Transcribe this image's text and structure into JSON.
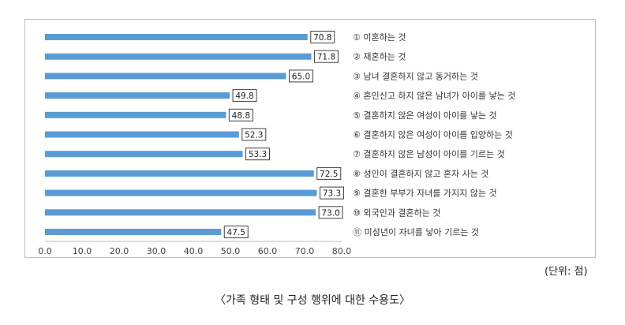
{
  "chart_data": {
    "type": "bar",
    "orientation": "horizontal",
    "title": "〈가족 형태 및 구성 행위에 대한 수용도〉",
    "unit": "(단위: 점)",
    "xlabel": "",
    "ylabel": "",
    "xlim": [
      0,
      80
    ],
    "ticks": [
      "0.0",
      "10.0",
      "20.0",
      "30.0",
      "40.0",
      "50.0",
      "60.0",
      "70.0",
      "80.0"
    ],
    "bar_color": "#5b9bd5",
    "grid": false,
    "categories": [
      "① 이혼하는 것",
      "② 재혼하는 것",
      "③ 남녀 결혼하지 않고 동거하는 것",
      "④ 혼인신고 하지 않은 남녀가 아이를 낳는 것",
      "⑤ 결혼하지 않은 여성이 아이를 낳는 것",
      "⑥ 결혼하지 않은 여성이 아이를 입양하는 것",
      "⑦ 결혼하지 않은 남성이 아이를 기르는 것",
      "⑧ 성인이 결혼하지 않고 혼자 사는 것",
      "⑨ 결혼한 부부가 자녀를 가지지 않는 것",
      "⑩ 외국인과 결혼하는 것",
      "⑪ 미성년이 자녀를 낳아 기르는 것"
    ],
    "values": [
      70.8,
      71.8,
      65.0,
      49.8,
      48.8,
      52.3,
      53.3,
      72.5,
      73.3,
      73.0,
      47.5
    ],
    "value_labels": [
      "70.8",
      "71.8",
      "65.0",
      "49.8",
      "48.8",
      "52.3",
      "53.3",
      "72.5",
      "73.3",
      "73.0",
      "47.5"
    ]
  }
}
